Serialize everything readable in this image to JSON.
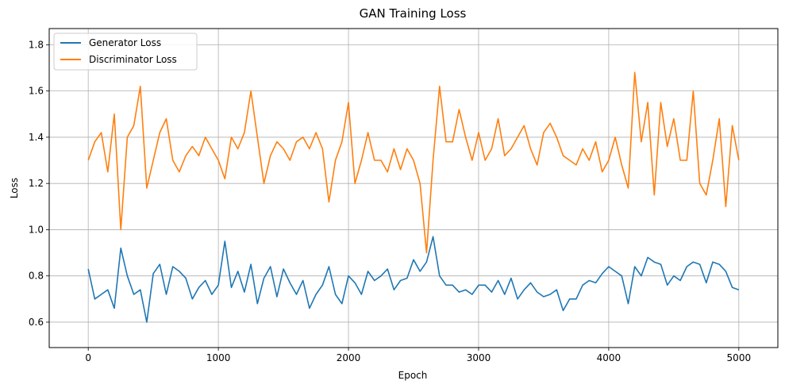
{
  "chart_data": {
    "type": "line",
    "title": "GAN Training Loss",
    "xlabel": "Epoch",
    "ylabel": "Loss",
    "xlim": [
      -300,
      5300
    ],
    "ylim": [
      0.49,
      1.87
    ],
    "x_ticks": [
      0,
      1000,
      2000,
      3000,
      4000,
      5000
    ],
    "x_tick_labels": [
      "0",
      "1000",
      "2000",
      "3000",
      "4000",
      "5000"
    ],
    "y_ticks": [
      0.6,
      0.8,
      1.0,
      1.2,
      1.4,
      1.6,
      1.8
    ],
    "y_tick_labels": [
      "0.6",
      "0.8",
      "1.0",
      "1.2",
      "1.4",
      "1.6",
      "1.8"
    ],
    "grid": true,
    "legend_position": "top-left",
    "series": [
      {
        "name": "Generator Loss",
        "color": "#1f77b4",
        "x": [
          0,
          50,
          100,
          150,
          200,
          250,
          300,
          350,
          400,
          450,
          500,
          550,
          600,
          650,
          700,
          750,
          800,
          850,
          900,
          950,
          1000,
          1050,
          1100,
          1150,
          1200,
          1250,
          1300,
          1350,
          1400,
          1450,
          1500,
          1550,
          1600,
          1650,
          1700,
          1750,
          1800,
          1850,
          1900,
          1950,
          2000,
          2050,
          2100,
          2150,
          2200,
          2250,
          2300,
          2350,
          2400,
          2450,
          2500,
          2550,
          2600,
          2650,
          2700,
          2750,
          2800,
          2850,
          2900,
          2950,
          3000,
          3050,
          3100,
          3150,
          3200,
          3250,
          3300,
          3350,
          3400,
          3450,
          3500,
          3550,
          3600,
          3650,
          3700,
          3750,
          3800,
          3850,
          3900,
          3950,
          4000,
          4050,
          4100,
          4150,
          4200,
          4250,
          4300,
          4350,
          4400,
          4450,
          4500,
          4550,
          4600,
          4650,
          4700,
          4750,
          4800,
          4850,
          4900,
          4950,
          5000
        ],
        "values": [
          0.83,
          0.7,
          0.72,
          0.74,
          0.66,
          0.92,
          0.8,
          0.72,
          0.74,
          0.6,
          0.81,
          0.85,
          0.72,
          0.84,
          0.82,
          0.79,
          0.7,
          0.75,
          0.78,
          0.72,
          0.76,
          0.95,
          0.75,
          0.82,
          0.73,
          0.85,
          0.68,
          0.79,
          0.84,
          0.71,
          0.83,
          0.77,
          0.72,
          0.78,
          0.66,
          0.72,
          0.76,
          0.84,
          0.72,
          0.68,
          0.8,
          0.77,
          0.72,
          0.82,
          0.78,
          0.8,
          0.83,
          0.74,
          0.78,
          0.79,
          0.87,
          0.82,
          0.86,
          0.97,
          0.8,
          0.76,
          0.76,
          0.73,
          0.74,
          0.72,
          0.76,
          0.76,
          0.73,
          0.78,
          0.72,
          0.79,
          0.7,
          0.74,
          0.77,
          0.73,
          0.71,
          0.72,
          0.74,
          0.65,
          0.7,
          0.7,
          0.76,
          0.78,
          0.77,
          0.81,
          0.84,
          0.82,
          0.8,
          0.68,
          0.84,
          0.8,
          0.88,
          0.86,
          0.85,
          0.76,
          0.8,
          0.78,
          0.84,
          0.86,
          0.85,
          0.77,
          0.86,
          0.85,
          0.82,
          0.75,
          0.74
        ]
      },
      {
        "name": "Discriminator Loss",
        "color": "#ff7f0e",
        "x": [
          0,
          50,
          100,
          150,
          200,
          250,
          300,
          350,
          400,
          450,
          500,
          550,
          600,
          650,
          700,
          750,
          800,
          850,
          900,
          950,
          1000,
          1050,
          1100,
          1150,
          1200,
          1250,
          1300,
          1350,
          1400,
          1450,
          1500,
          1550,
          1600,
          1650,
          1700,
          1750,
          1800,
          1850,
          1900,
          1950,
          2000,
          2050,
          2100,
          2150,
          2200,
          2250,
          2300,
          2350,
          2400,
          2450,
          2500,
          2550,
          2600,
          2650,
          2700,
          2750,
          2800,
          2850,
          2900,
          2950,
          3000,
          3050,
          3100,
          3150,
          3200,
          3250,
          3300,
          3350,
          3400,
          3450,
          3500,
          3550,
          3600,
          3650,
          3700,
          3750,
          3800,
          3850,
          3900,
          3950,
          4000,
          4050,
          4100,
          4150,
          4200,
          4250,
          4300,
          4350,
          4400,
          4450,
          4500,
          4550,
          4600,
          4650,
          4700,
          4750,
          4800,
          4850,
          4900,
          4950,
          5000
        ],
        "values": [
          1.3,
          1.38,
          1.42,
          1.25,
          1.5,
          1.0,
          1.4,
          1.45,
          1.62,
          1.18,
          1.3,
          1.42,
          1.48,
          1.3,
          1.25,
          1.32,
          1.36,
          1.32,
          1.4,
          1.35,
          1.3,
          1.22,
          1.4,
          1.35,
          1.42,
          1.6,
          1.4,
          1.2,
          1.32,
          1.38,
          1.35,
          1.3,
          1.38,
          1.4,
          1.35,
          1.42,
          1.35,
          1.12,
          1.3,
          1.38,
          1.55,
          1.2,
          1.3,
          1.42,
          1.3,
          1.3,
          1.25,
          1.35,
          1.26,
          1.35,
          1.3,
          1.2,
          0.9,
          1.3,
          1.62,
          1.38,
          1.38,
          1.52,
          1.4,
          1.3,
          1.42,
          1.3,
          1.35,
          1.48,
          1.32,
          1.35,
          1.4,
          1.45,
          1.35,
          1.28,
          1.42,
          1.46,
          1.4,
          1.32,
          1.3,
          1.28,
          1.35,
          1.3,
          1.38,
          1.25,
          1.3,
          1.4,
          1.28,
          1.18,
          1.68,
          1.38,
          1.55,
          1.15,
          1.55,
          1.36,
          1.48,
          1.3,
          1.3,
          1.6,
          1.2,
          1.15,
          1.3,
          1.48,
          1.1,
          1.45,
          1.3
        ]
      }
    ]
  }
}
